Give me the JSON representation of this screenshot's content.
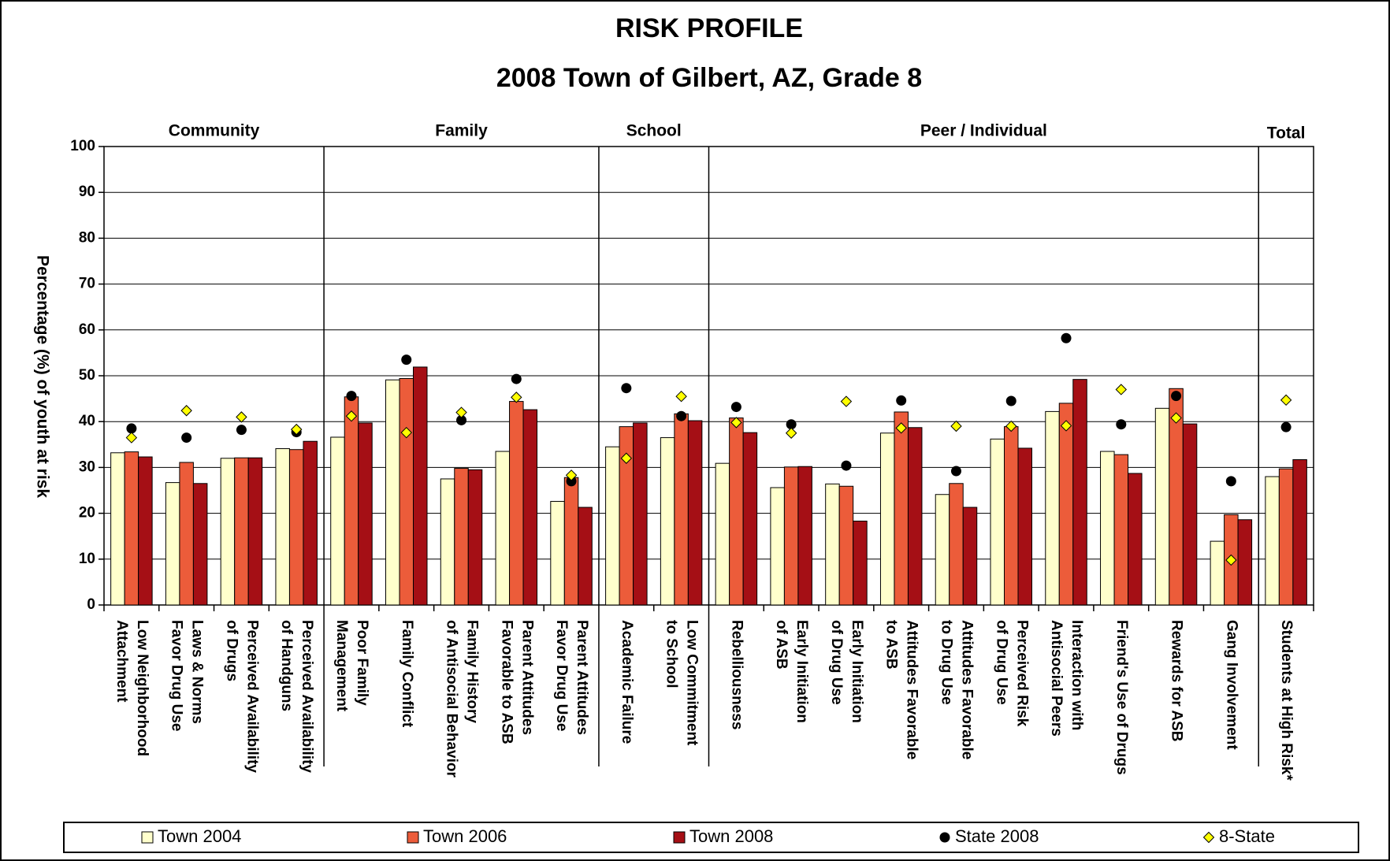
{
  "chart_data": {
    "type": "bar",
    "title": "RISK PROFILE",
    "subtitle": "2008 Town of Gilbert, AZ, Grade 8",
    "y_label": "Percentage (%) of youth at risk",
    "groups": [
      {
        "name": "Community",
        "categories": [
          "Low Neighborhood\nAttachment",
          "Laws & Norms\nFavor Drug Use",
          "Perceived Availability\nof Drugs",
          "Perceived Availability\nof Handguns"
        ]
      },
      {
        "name": "Family",
        "categories": [
          "Poor Family\nManagement",
          "Family Conflict",
          "Family History\nof Antisocial Behavior",
          "Parent Attitudes\nFavorable to ASB",
          "Parent Attitudes\nFavor Drug Use"
        ]
      },
      {
        "name": "School",
        "categories": [
          "Academic Failure",
          "Low Commitment\nto School"
        ]
      },
      {
        "name": "Peer / Individual",
        "categories": [
          "Rebelliousness",
          "Early Initiation\nof ASB",
          "Early Initiation\nof Drug Use",
          "Attitudes Favorable\nto ASB",
          "Attitudes Favorable\nto Drug Use",
          "Perceived Risk\nof Drug Use",
          "Interaction with\nAntisocial Peers",
          "Friend's Use of Drugs",
          "Rewards for ASB",
          "Gang Involvement"
        ]
      },
      {
        "name": "Total",
        "categories": [
          "Students at High Risk*"
        ]
      }
    ],
    "series": [
      {
        "name": "Town 2004",
        "color": "#ffffcc",
        "values": [
          33.2,
          26.7,
          32.0,
          34.1,
          36.6,
          49.1,
          27.5,
          33.5,
          22.6,
          34.5,
          36.5,
          30.9,
          25.6,
          26.4,
          37.5,
          24.1,
          36.2,
          42.2,
          33.5,
          42.9,
          13.9,
          28.0
        ]
      },
      {
        "name": "Town 2006",
        "color": "#ec5c3a",
        "values": [
          33.4,
          31.1,
          32.1,
          33.9,
          45.4,
          49.4,
          29.8,
          44.4,
          27.8,
          38.9,
          41.7,
          40.8,
          30.1,
          25.9,
          42.1,
          26.5,
          38.9,
          44.0,
          32.8,
          47.2,
          19.7,
          29.7
        ]
      },
      {
        "name": "Town 2008",
        "color": "#a50f15",
        "values": [
          32.3,
          26.5,
          32.1,
          35.7,
          39.7,
          51.9,
          29.5,
          42.6,
          21.3,
          39.7,
          40.2,
          37.6,
          30.2,
          18.3,
          38.7,
          21.3,
          34.2,
          49.2,
          28.7,
          39.5,
          18.6,
          31.7
        ]
      },
      {
        "name": "State 2008",
        "color": "#000000",
        "marker": "circle",
        "values": [
          38.5,
          36.5,
          38.2,
          37.7,
          45.6,
          53.5,
          40.3,
          49.3,
          27.0,
          47.3,
          41.2,
          43.2,
          39.4,
          30.4,
          44.6,
          29.2,
          44.5,
          58.2,
          39.4,
          45.6,
          27.0,
          38.8
        ]
      },
      {
        "name": "8-State",
        "color": "#ffff00",
        "marker": "diamond",
        "values": [
          36.5,
          42.4,
          41.0,
          38.3,
          41.2,
          37.6,
          42.0,
          45.3,
          28.3,
          32.0,
          45.5,
          39.8,
          37.5,
          44.4,
          38.6,
          39.0,
          39.0,
          39.1,
          47.0,
          40.8,
          9.8,
          44.7
        ]
      }
    ],
    "ylim": [
      0,
      100
    ],
    "yticks": [
      0,
      10,
      20,
      30,
      40,
      50,
      60,
      70,
      80,
      90,
      100
    ],
    "grid": true
  }
}
